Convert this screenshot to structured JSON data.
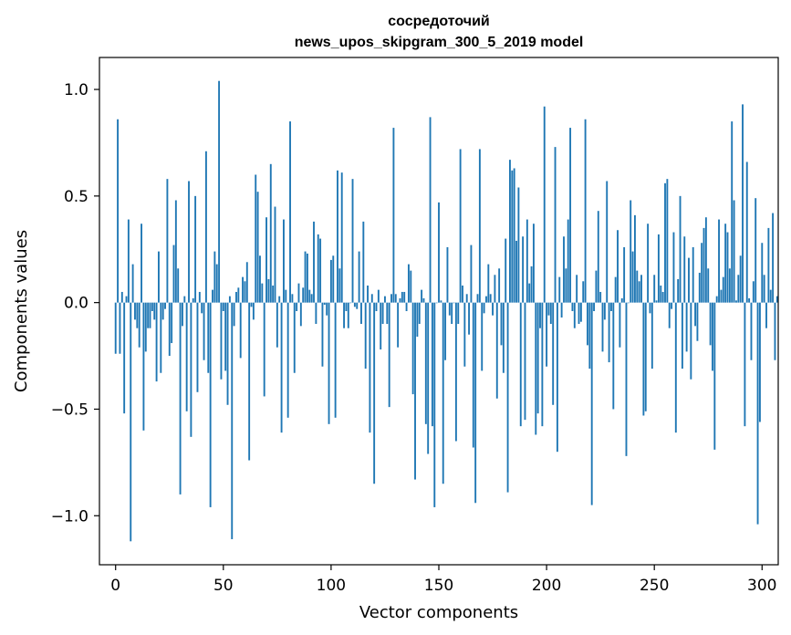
{
  "chart_data": {
    "type": "bar",
    "title_lines": [
      "сосредоточий",
      "news_upos_skipgram_300_5_2019 model"
    ],
    "xlabel": "Vector components",
    "ylabel": "Components values",
    "xlim": [
      -7.5,
      307.5
    ],
    "ylim": [
      -1.23,
      1.15
    ],
    "xticks": [
      0,
      50,
      100,
      150,
      200,
      250,
      300
    ],
    "xtick_labels": [
      "0",
      "50",
      "100",
      "150",
      "200",
      "250",
      "300"
    ],
    "yticks": [
      -1.0,
      -0.5,
      0.0,
      0.5,
      1.0
    ],
    "ytick_labels": [
      "−1.0",
      "−0.5",
      "0.0",
      "0.5",
      "1.0"
    ],
    "bar_color": "#1f77b4",
    "grid": false,
    "series": [
      {
        "name": "components",
        "values": [
          -0.24,
          0.86,
          -0.24,
          0.05,
          -0.52,
          0.03,
          0.39,
          -1.12,
          0.18,
          -0.08,
          -0.12,
          -0.21,
          0.37,
          -0.6,
          -0.23,
          -0.12,
          -0.12,
          -0.04,
          -0.08,
          -0.37,
          0.24,
          -0.33,
          -0.08,
          -0.03,
          0.58,
          -0.25,
          -0.19,
          0.27,
          0.48,
          0.16,
          -0.9,
          -0.11,
          0.03,
          -0.51,
          0.57,
          -0.63,
          0.02,
          0.5,
          -0.42,
          0.05,
          -0.05,
          -0.27,
          0.71,
          -0.33,
          -0.96,
          0.06,
          0.24,
          0.18,
          1.04,
          -0.36,
          -0.04,
          -0.32,
          -0.48,
          0.03,
          -1.11,
          -0.11,
          0.05,
          0.07,
          -0.26,
          0.12,
          0.1,
          0.19,
          -0.74,
          -0.02,
          -0.08,
          0.6,
          0.52,
          0.22,
          0.09,
          -0.44,
          0.4,
          0.11,
          0.65,
          0.08,
          0.45,
          -0.21,
          0.03,
          -0.61,
          0.39,
          0.06,
          -0.54,
          0.85,
          0.04,
          -0.33,
          -0.04,
          0.09,
          -0.11,
          0.07,
          0.24,
          0.23,
          0.06,
          0.04,
          0.38,
          -0.1,
          0.32,
          0.3,
          -0.3,
          -0.01,
          -0.06,
          -0.57,
          0.2,
          0.22,
          -0.54,
          0.62,
          0.16,
          0.61,
          -0.12,
          -0.04,
          -0.12,
          0.0,
          0.58,
          -0.02,
          -0.03,
          0.24,
          -0.1,
          0.38,
          -0.31,
          0.08,
          -0.61,
          0.04,
          -0.85,
          -0.04,
          0.06,
          -0.22,
          -0.1,
          0.03,
          -0.1,
          -0.49,
          0.04,
          0.82,
          0.04,
          -0.21,
          0.02,
          0.05,
          0.05,
          -0.04,
          0.18,
          0.15,
          -0.43,
          -0.83,
          -0.16,
          -0.1,
          0.06,
          0.02,
          -0.57,
          -0.71,
          0.87,
          -0.58,
          -0.96,
          0.0,
          0.47,
          0.01,
          -0.85,
          -0.27,
          0.26,
          -0.06,
          -0.1,
          0.0,
          -0.65,
          -0.1,
          0.72,
          0.08,
          -0.3,
          0.04,
          -0.15,
          0.27,
          -0.68,
          -0.94,
          0.04,
          0.72,
          -0.32,
          -0.05,
          0.03,
          0.18,
          0.04,
          -0.06,
          0.13,
          -0.45,
          0.16,
          -0.2,
          -0.33,
          0.3,
          -0.89,
          0.67,
          0.62,
          0.63,
          0.29,
          0.54,
          -0.58,
          0.31,
          -0.55,
          0.39,
          0.09,
          0.17,
          0.37,
          -0.62,
          -0.52,
          -0.12,
          -0.58,
          0.92,
          -0.3,
          -0.06,
          -0.1,
          -0.48,
          0.73,
          -0.7,
          0.12,
          -0.07,
          0.31,
          0.16,
          0.39,
          0.82,
          -0.04,
          -0.12,
          0.13,
          -0.1,
          -0.09,
          0.1,
          0.86,
          -0.2,
          -0.31,
          -0.95,
          -0.04,
          0.15,
          0.43,
          0.05,
          -0.23,
          -0.08,
          0.57,
          -0.28,
          -0.04,
          -0.5,
          0.12,
          0.34,
          -0.21,
          0.02,
          0.26,
          -0.72,
          0.0,
          0.48,
          0.24,
          0.41,
          0.15,
          0.1,
          0.13,
          -0.53,
          -0.51,
          0.37,
          -0.05,
          -0.31,
          0.13,
          0.01,
          0.32,
          0.08,
          0.05,
          0.56,
          0.58,
          -0.12,
          -0.03,
          0.33,
          -0.61,
          0.11,
          0.5,
          -0.31,
          0.31,
          -0.23,
          0.21,
          -0.36,
          0.26,
          -0.11,
          -0.18,
          0.14,
          0.28,
          0.35,
          0.4,
          0.16,
          -0.2,
          -0.32,
          -0.69,
          0.03,
          0.39,
          0.06,
          0.12,
          0.37,
          0.33,
          0.16,
          0.85,
          0.48,
          0.01,
          0.13,
          0.22,
          0.93,
          -0.58,
          0.66,
          0.02,
          -0.27,
          0.1,
          0.49,
          -1.04,
          -0.56,
          0.28,
          0.13,
          -0.12,
          0.35,
          0.06,
          0.42,
          -0.27,
          0.03
        ]
      }
    ]
  }
}
